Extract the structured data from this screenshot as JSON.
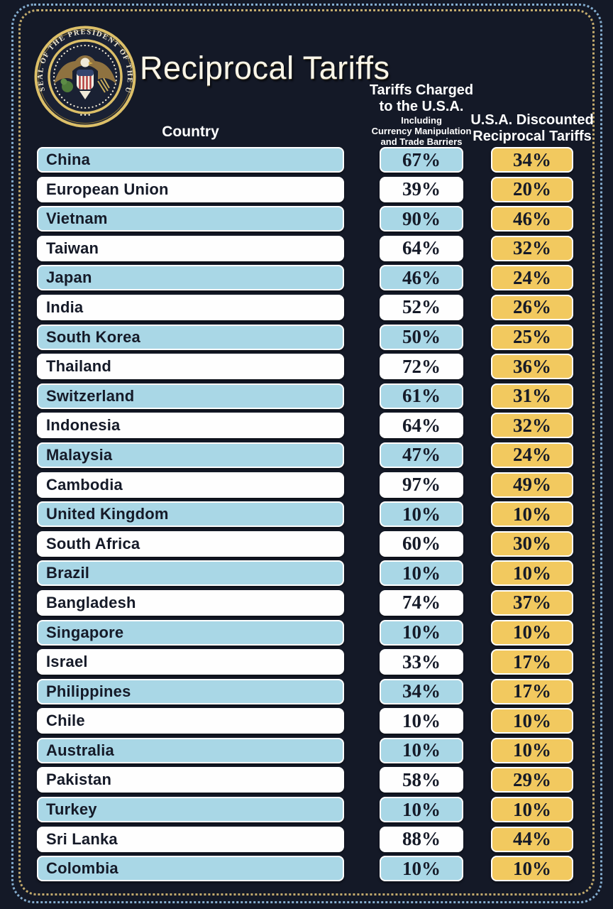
{
  "poster": {
    "title": "Reciprocal Tariffs",
    "seal_text": "SEAL OF THE PRESIDENT OF THE UNITED STATES",
    "columns": {
      "country": "Country",
      "charged_line1": "Tariffs Charged",
      "charged_line2": "to the U.S.A.",
      "charged_sub1": "Including",
      "charged_sub2": "Currency Manipulation",
      "charged_sub3": "and Trade Barriers",
      "discounted_line1": "U.S.A. Discounted",
      "discounted_line2": "Reciprocal Tariffs"
    },
    "colors": {
      "background": "#141927",
      "row_blue": "#a9d7e6",
      "row_white": "#fefefe",
      "chip_gold": "#f2c95f",
      "text_dark": "#151a28",
      "title_cream": "#f9f5e8",
      "border_outer_dots": "#84adcf",
      "border_inner_dots": "#c3ab6d",
      "seal_gold": "#dcbf68"
    }
  },
  "chart_data": {
    "type": "table",
    "title": "Reciprocal Tariffs",
    "columns": [
      "Country",
      "Tariffs Charged to the U.S.A. Including Currency Manipulation and Trade Barriers",
      "U.S.A. Discounted Reciprocal Tariffs"
    ],
    "rows": [
      [
        "China",
        "67%",
        "34%"
      ],
      [
        "European Union",
        "39%",
        "20%"
      ],
      [
        "Vietnam",
        "90%",
        "46%"
      ],
      [
        "Taiwan",
        "64%",
        "32%"
      ],
      [
        "Japan",
        "46%",
        "24%"
      ],
      [
        "India",
        "52%",
        "26%"
      ],
      [
        "South Korea",
        "50%",
        "25%"
      ],
      [
        "Thailand",
        "72%",
        "36%"
      ],
      [
        "Switzerland",
        "61%",
        "31%"
      ],
      [
        "Indonesia",
        "64%",
        "32%"
      ],
      [
        "Malaysia",
        "47%",
        "24%"
      ],
      [
        "Cambodia",
        "97%",
        "49%"
      ],
      [
        "United Kingdom",
        "10%",
        "10%"
      ],
      [
        "South Africa",
        "60%",
        "30%"
      ],
      [
        "Brazil",
        "10%",
        "10%"
      ],
      [
        "Bangladesh",
        "74%",
        "37%"
      ],
      [
        "Singapore",
        "10%",
        "10%"
      ],
      [
        "Israel",
        "33%",
        "17%"
      ],
      [
        "Philippines",
        "34%",
        "17%"
      ],
      [
        "Chile",
        "10%",
        "10%"
      ],
      [
        "Australia",
        "10%",
        "10%"
      ],
      [
        "Pakistan",
        "58%",
        "29%"
      ],
      [
        "Turkey",
        "10%",
        "10%"
      ],
      [
        "Sri Lanka",
        "88%",
        "44%"
      ],
      [
        "Colombia",
        "10%",
        "10%"
      ]
    ]
  },
  "rows": [
    {
      "country": "China",
      "charged": "67%",
      "discounted": "34%",
      "shade": "blue"
    },
    {
      "country": "European Union",
      "charged": "39%",
      "discounted": "20%",
      "shade": "white"
    },
    {
      "country": "Vietnam",
      "charged": "90%",
      "discounted": "46%",
      "shade": "blue"
    },
    {
      "country": "Taiwan",
      "charged": "64%",
      "discounted": "32%",
      "shade": "white"
    },
    {
      "country": "Japan",
      "charged": "46%",
      "discounted": "24%",
      "shade": "blue"
    },
    {
      "country": "India",
      "charged": "52%",
      "discounted": "26%",
      "shade": "white"
    },
    {
      "country": "South Korea",
      "charged": "50%",
      "discounted": "25%",
      "shade": "blue"
    },
    {
      "country": "Thailand",
      "charged": "72%",
      "discounted": "36%",
      "shade": "white"
    },
    {
      "country": "Switzerland",
      "charged": "61%",
      "discounted": "31%",
      "shade": "blue"
    },
    {
      "country": "Indonesia",
      "charged": "64%",
      "discounted": "32%",
      "shade": "white"
    },
    {
      "country": "Malaysia",
      "charged": "47%",
      "discounted": "24%",
      "shade": "blue"
    },
    {
      "country": "Cambodia",
      "charged": "97%",
      "discounted": "49%",
      "shade": "white"
    },
    {
      "country": "United Kingdom",
      "charged": "10%",
      "discounted": "10%",
      "shade": "blue"
    },
    {
      "country": "South Africa",
      "charged": "60%",
      "discounted": "30%",
      "shade": "white"
    },
    {
      "country": "Brazil",
      "charged": "10%",
      "discounted": "10%",
      "shade": "blue"
    },
    {
      "country": "Bangladesh",
      "charged": "74%",
      "discounted": "37%",
      "shade": "white"
    },
    {
      "country": "Singapore",
      "charged": "10%",
      "discounted": "10%",
      "shade": "blue"
    },
    {
      "country": "Israel",
      "charged": "33%",
      "discounted": "17%",
      "shade": "white"
    },
    {
      "country": "Philippines",
      "charged": "34%",
      "discounted": "17%",
      "shade": "blue"
    },
    {
      "country": "Chile",
      "charged": "10%",
      "discounted": "10%",
      "shade": "white"
    },
    {
      "country": "Australia",
      "charged": "10%",
      "discounted": "10%",
      "shade": "blue"
    },
    {
      "country": "Pakistan",
      "charged": "58%",
      "discounted": "29%",
      "shade": "white"
    },
    {
      "country": "Turkey",
      "charged": "10%",
      "discounted": "10%",
      "shade": "blue"
    },
    {
      "country": "Sri Lanka",
      "charged": "88%",
      "discounted": "44%",
      "shade": "white"
    },
    {
      "country": "Colombia",
      "charged": "10%",
      "discounted": "10%",
      "shade": "blue"
    }
  ]
}
